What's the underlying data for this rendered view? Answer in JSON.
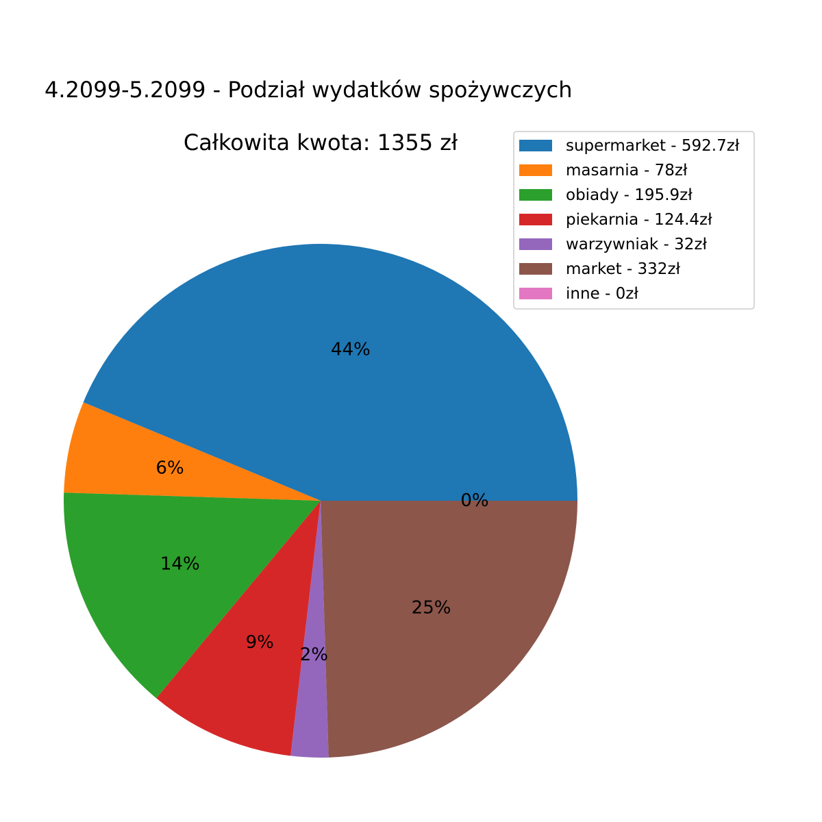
{
  "chart_data": {
    "type": "pie",
    "title": "4.2099-5.2099 - Podział wydatków spożywczych",
    "subtitle": "Całkowita kwota: 1355 zł",
    "slices": [
      {
        "label": "supermarket - 592.7zł",
        "value": 592.7,
        "pct_label": "44%",
        "color": "#1f77b4"
      },
      {
        "label": "masarnia - 78zł",
        "value": 78,
        "pct_label": "6%",
        "color": "#ff7f0e"
      },
      {
        "label": "obiady - 195.9zł",
        "value": 195.9,
        "pct_label": "14%",
        "color": "#2ca02c"
      },
      {
        "label": "piekarnia - 124.4zł",
        "value": 124.4,
        "pct_label": "9%",
        "color": "#d62728"
      },
      {
        "label": "warzywniak - 32zł",
        "value": 32,
        "pct_label": "2%",
        "color": "#9467bd"
      },
      {
        "label": "market - 332zł",
        "value": 332,
        "pct_label": "25%",
        "color": "#8c564b"
      },
      {
        "label": "inne - 0zł",
        "value": 0,
        "pct_label": "0%",
        "color": "#e377c2"
      }
    ],
    "start_angle_deg": 0,
    "direction": "counterclockwise",
    "legend_position": "top-right"
  }
}
